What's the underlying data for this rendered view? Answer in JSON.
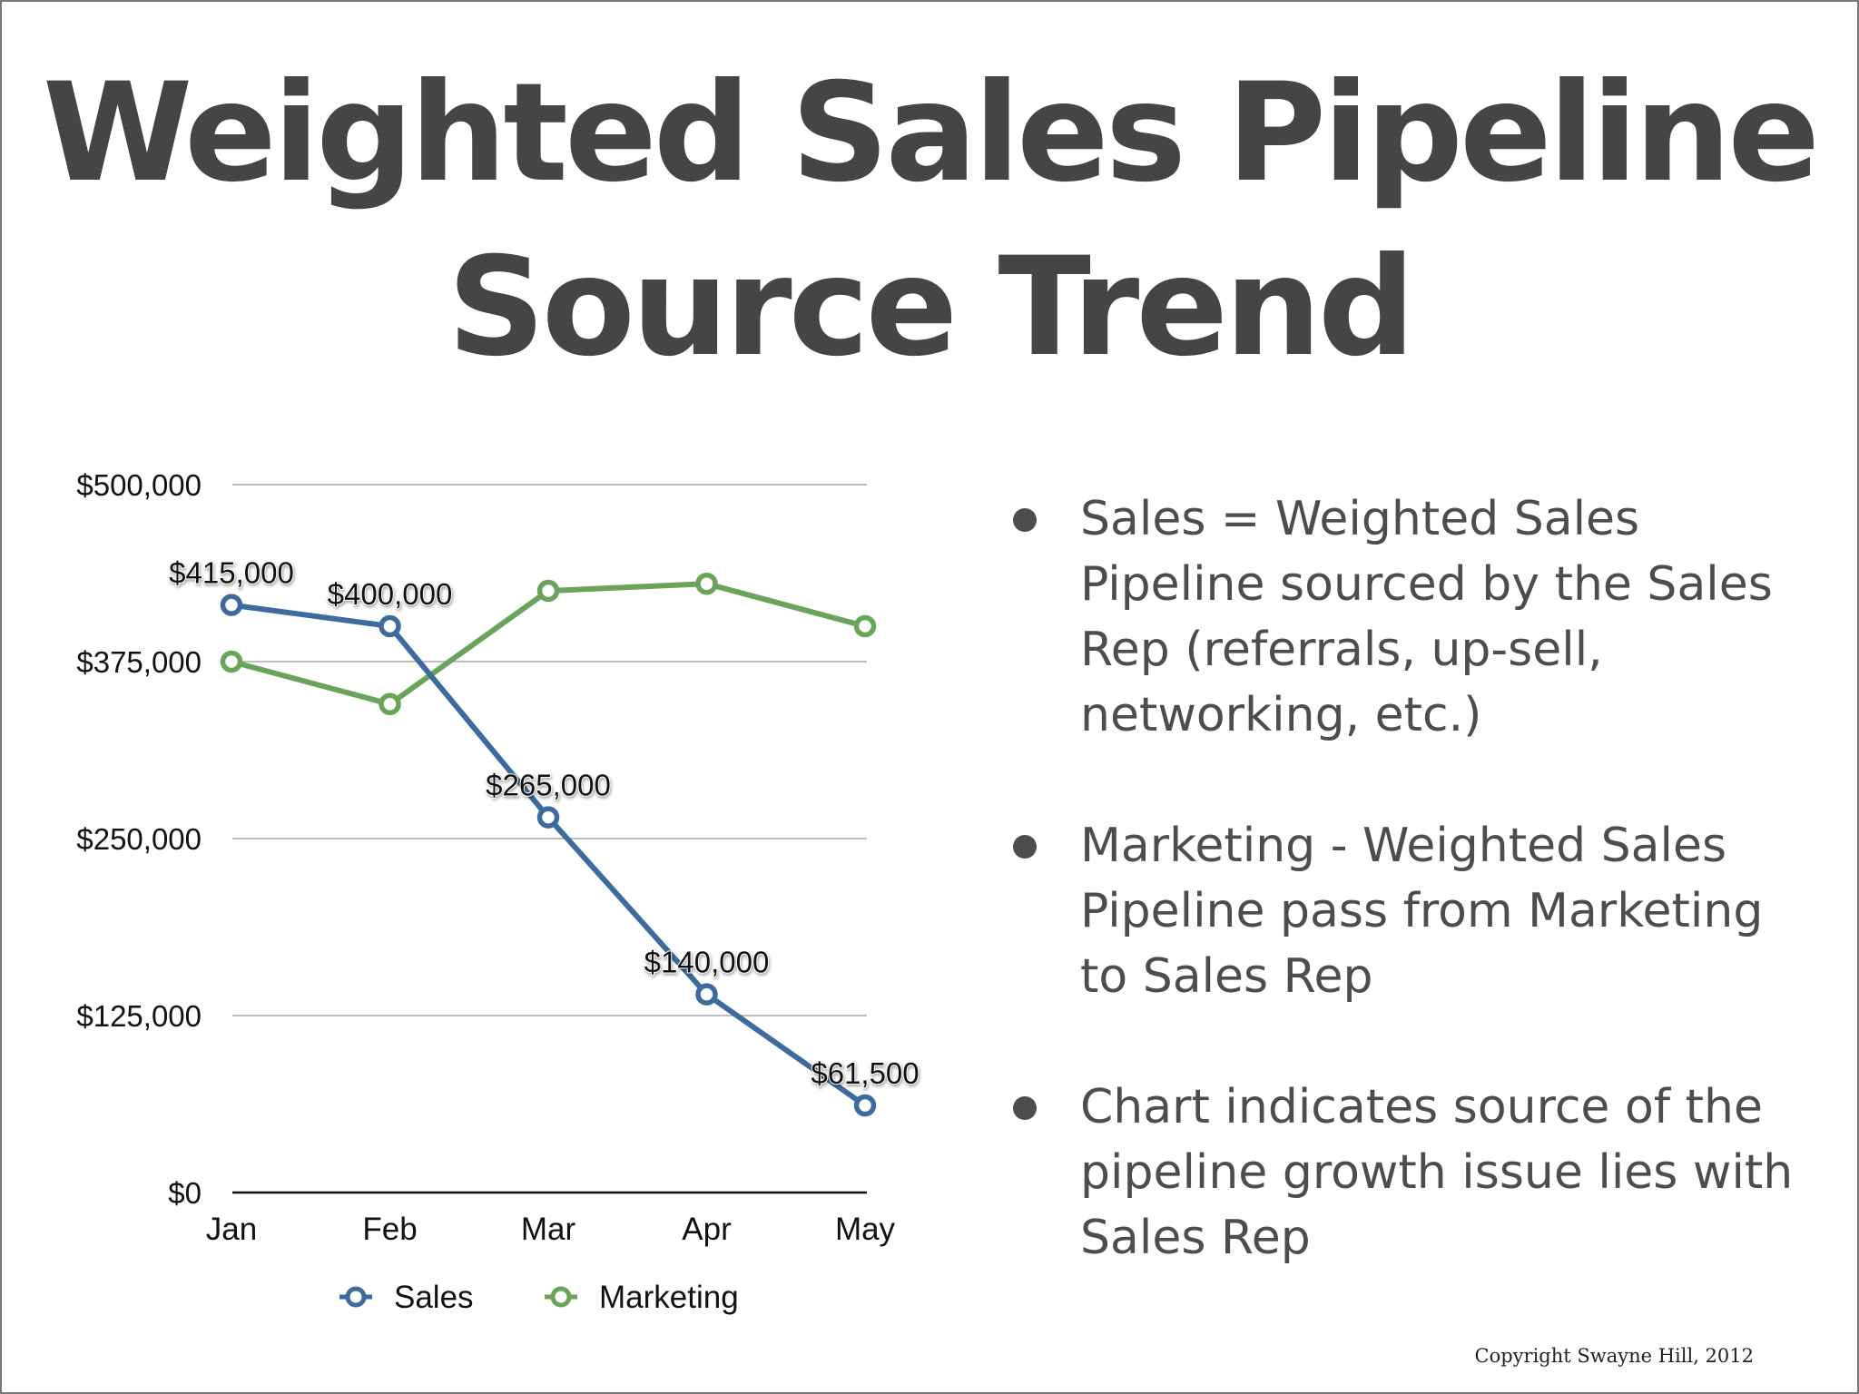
{
  "slide": {
    "title_line1": "Weighted Sales Pipeline",
    "title_line2": "Source Trend",
    "copyright": "Copyright Swayne Hill, 2012"
  },
  "bullets": [
    {
      "text": "Sales = Weighted Sales Pipeline sourced by the Sales Rep (referrals, up-sell, networking, etc.)"
    },
    {
      "text": "Marketing - Weighted Sales Pipeline pass from Marketing to Sales Rep"
    },
    {
      "text": "Chart indicates source of the pipeline growth issue lies with Sales Rep"
    }
  ],
  "colors": {
    "sales": "#3d6b9e",
    "marketing": "#6aa35a",
    "gridline": "#aaaaaa",
    "text": "#4d4d4d"
  },
  "chart_data": {
    "type": "line",
    "categories": [
      "Jan",
      "Feb",
      "Mar",
      "Apr",
      "May"
    ],
    "yticks": [
      "$0",
      "$125,000",
      "$250,000",
      "$375,000",
      "$500,000"
    ],
    "ylim": [
      0,
      500000
    ],
    "grid": true,
    "legend_position": "bottom",
    "series": [
      {
        "name": "Sales",
        "values": [
          415000,
          400000,
          265000,
          140000,
          61500
        ],
        "labels": [
          "$415,000",
          "$400,000",
          "$265,000",
          "$140,000",
          "$61,500"
        ]
      },
      {
        "name": "Marketing",
        "values": [
          375000,
          345000,
          425000,
          430000,
          400000
        ]
      }
    ]
  }
}
